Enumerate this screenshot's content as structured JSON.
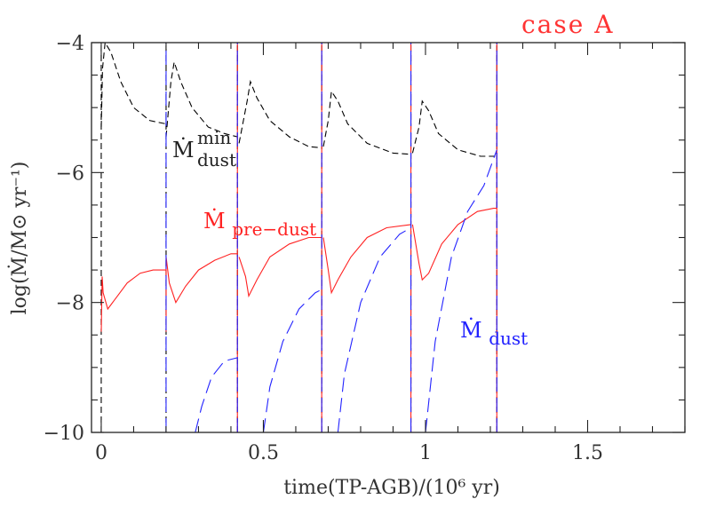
{
  "chart_data": {
    "type": "line",
    "annotation": "case A",
    "xlabel": "time(TP-AGB)/(10⁶ yr)",
    "ylabel": "log(Ṁ/M⊙ yr⁻¹)",
    "xlim": [
      -0.03,
      1.8
    ],
    "ylim": [
      -10,
      -4
    ],
    "x_ticks": [
      0,
      0.5,
      1,
      1.5
    ],
    "x_tick_labels": [
      "0",
      "0.5",
      "1",
      "1.5"
    ],
    "y_ticks": [
      -10,
      -8,
      -6,
      -4
    ],
    "y_tick_labels": [
      "−10",
      "−8",
      "−6",
      "−4"
    ],
    "grid": false,
    "legend": "inline labels",
    "colors": {
      "mdot_min_dust": "#000000",
      "mdot_pre_dust": "#ff2222",
      "mdot_dust": "#2222ff",
      "case": "#ff3333"
    },
    "labels": {
      "min_dust": {
        "main": "Ṁ",
        "sup": "min",
        "sub": "dust"
      },
      "pre_dust": {
        "main": "Ṁ",
        "sub": "pre−dust"
      },
      "dust": {
        "main": "Ṁ",
        "sub": "dust"
      }
    },
    "series": [
      {
        "name": "Ṁ_dust^min",
        "style": "dashed",
        "segments": [
          [
            [
              0,
              -5.3
            ],
            [
              0.004,
              -4.4
            ],
            [
              0.012,
              -4.0
            ],
            [
              0.03,
              -4.15
            ],
            [
              0.06,
              -4.6
            ],
            [
              0.1,
              -5.0
            ],
            [
              0.15,
              -5.2
            ],
            [
              0.199,
              -5.25
            ]
          ],
          [
            [
              0.2,
              -5.45
            ],
            [
              0.215,
              -4.6
            ],
            [
              0.225,
              -4.3
            ],
            [
              0.245,
              -4.6
            ],
            [
              0.28,
              -5.0
            ],
            [
              0.33,
              -5.3
            ],
            [
              0.38,
              -5.4
            ],
            [
              0.42,
              -5.45
            ]
          ],
          [
            [
              0.425,
              -5.55
            ],
            [
              0.45,
              -4.9
            ],
            [
              0.46,
              -4.6
            ],
            [
              0.48,
              -4.85
            ],
            [
              0.52,
              -5.2
            ],
            [
              0.58,
              -5.45
            ],
            [
              0.64,
              -5.6
            ],
            [
              0.68,
              -5.62
            ]
          ],
          [
            [
              0.685,
              -5.6
            ],
            [
              0.7,
              -5.2
            ],
            [
              0.71,
              -4.75
            ],
            [
              0.73,
              -4.9
            ],
            [
              0.76,
              -5.25
            ],
            [
              0.82,
              -5.55
            ],
            [
              0.9,
              -5.7
            ],
            [
              0.955,
              -5.72
            ]
          ],
          [
            [
              0.96,
              -5.7
            ],
            [
              0.98,
              -5.3
            ],
            [
              0.99,
              -4.9
            ],
            [
              1.01,
              -5.05
            ],
            [
              1.04,
              -5.4
            ],
            [
              1.1,
              -5.65
            ],
            [
              1.17,
              -5.75
            ],
            [
              1.22,
              -5.75
            ]
          ]
        ],
        "spikes_to_ymax": [
          0.0,
          0.2,
          0.42,
          0.68,
          0.955,
          1.22
        ]
      },
      {
        "name": "Ṁ_pre−dust",
        "style": "solid",
        "segments": [
          [
            [
              0,
              -8.45
            ],
            [
              0.003,
              -7.6
            ],
            [
              0.006,
              -7.85
            ],
            [
              0.02,
              -8.1
            ],
            [
              0.05,
              -7.9
            ],
            [
              0.08,
              -7.7
            ],
            [
              0.12,
              -7.55
            ],
            [
              0.16,
              -7.5
            ],
            [
              0.199,
              -7.5
            ]
          ],
          [
            [
              0.2,
              -8.45
            ],
            [
              0.2,
              -7.3
            ],
            [
              0.21,
              -7.7
            ],
            [
              0.23,
              -8.0
            ],
            [
              0.26,
              -7.75
            ],
            [
              0.3,
              -7.5
            ],
            [
              0.35,
              -7.35
            ],
            [
              0.4,
              -7.25
            ],
            [
              0.42,
              -7.25
            ]
          ],
          [
            [
              0.425,
              -7.3
            ],
            [
              0.445,
              -7.6
            ],
            [
              0.455,
              -7.9
            ],
            [
              0.48,
              -7.65
            ],
            [
              0.52,
              -7.3
            ],
            [
              0.58,
              -7.1
            ],
            [
              0.64,
              -7.0
            ],
            [
              0.68,
              -7.0
            ]
          ],
          [
            [
              0.685,
              -7.0
            ],
            [
              0.7,
              -7.5
            ],
            [
              0.71,
              -7.85
            ],
            [
              0.73,
              -7.65
            ],
            [
              0.77,
              -7.3
            ],
            [
              0.82,
              -7.0
            ],
            [
              0.88,
              -6.85
            ],
            [
              0.955,
              -6.8
            ]
          ],
          [
            [
              0.96,
              -6.8
            ],
            [
              0.98,
              -7.4
            ],
            [
              0.99,
              -7.65
            ],
            [
              1.01,
              -7.55
            ],
            [
              1.05,
              -7.1
            ],
            [
              1.1,
              -6.8
            ],
            [
              1.16,
              -6.6
            ],
            [
              1.21,
              -6.55
            ],
            [
              1.22,
              -6.55
            ]
          ]
        ],
        "spikes_to_ymax": [
          0.42,
          0.68,
          0.955,
          1.22
        ]
      },
      {
        "name": "Ṁ_dust",
        "style": "dashed",
        "segments": [
          [
            [
              0.29,
              -10
            ],
            [
              0.31,
              -9.6
            ],
            [
              0.34,
              -9.15
            ],
            [
              0.38,
              -8.9
            ],
            [
              0.42,
              -8.85
            ]
          ],
          [
            [
              0.5,
              -10
            ],
            [
              0.52,
              -9.3
            ],
            [
              0.56,
              -8.6
            ],
            [
              0.61,
              -8.1
            ],
            [
              0.66,
              -7.85
            ],
            [
              0.68,
              -7.8
            ]
          ],
          [
            [
              0.73,
              -10
            ],
            [
              0.75,
              -9.1
            ],
            [
              0.8,
              -8.0
            ],
            [
              0.86,
              -7.3
            ],
            [
              0.92,
              -6.95
            ],
            [
              0.955,
              -6.85
            ]
          ],
          [
            [
              1.0,
              -10
            ],
            [
              1.03,
              -8.6
            ],
            [
              1.08,
              -7.3
            ],
            [
              1.13,
              -6.6
            ],
            [
              1.18,
              -6.2
            ],
            [
              1.22,
              -5.65
            ]
          ]
        ],
        "spikes_to_ymax": [
          0.2,
          0.42,
          0.68,
          0.955,
          1.22
        ]
      }
    ]
  }
}
